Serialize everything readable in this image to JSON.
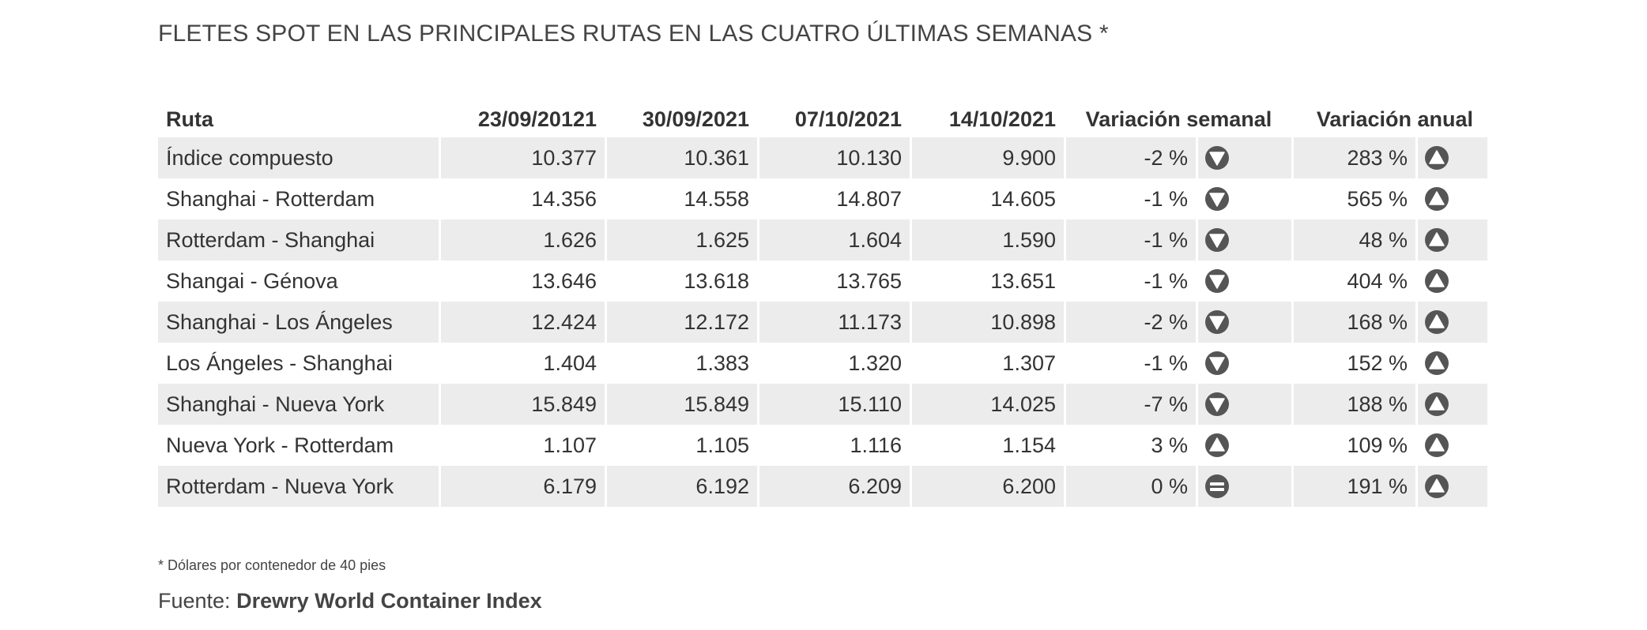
{
  "title": "FLETES SPOT EN LAS PRINCIPALES RUTAS EN LAS CUATRO ÚLTIMAS SEMANAS *",
  "table": {
    "headers": {
      "route": "Ruta",
      "week1": "23/09/20121",
      "week2": "30/09/2021",
      "week3": "07/10/2021",
      "week4": "14/10/2021",
      "weekly_variation": "Variación semanal",
      "annual_variation": "Variación anual"
    },
    "rows": [
      {
        "route": "Índice compuesto",
        "w1": "10.377",
        "w2": "10.361",
        "w3": "10.130",
        "w4": "9.900",
        "weekly": "-2 %",
        "weekly_icon": "down",
        "annual": "283 %",
        "annual_icon": "up"
      },
      {
        "route": "Shanghai - Rotterdam",
        "w1": "14.356",
        "w2": "14.558",
        "w3": "14.807",
        "w4": "14.605",
        "weekly": "-1 %",
        "weekly_icon": "down",
        "annual": "565 %",
        "annual_icon": "up"
      },
      {
        "route": "Rotterdam - Shanghai",
        "w1": "1.626",
        "w2": "1.625",
        "w3": "1.604",
        "w4": "1.590",
        "weekly": "-1 %",
        "weekly_icon": "down",
        "annual": "48 %",
        "annual_icon": "up"
      },
      {
        "route": "Shangai - Génova",
        "w1": "13.646",
        "w2": "13.618",
        "w3": "13.765",
        "w4": "13.651",
        "weekly": "-1 %",
        "weekly_icon": "down",
        "annual": "404 %",
        "annual_icon": "up"
      },
      {
        "route": "Shanghai - Los Ángeles",
        "w1": "12.424",
        "w2": "12.172",
        "w3": "11.173",
        "w4": "10.898",
        "weekly": "-2 %",
        "weekly_icon": "down",
        "annual": "168 %",
        "annual_icon": "up"
      },
      {
        "route": "Los Ángeles - Shanghai",
        "w1": "1.404",
        "w2": "1.383",
        "w3": "1.320",
        "w4": "1.307",
        "weekly": "-1 %",
        "weekly_icon": "down",
        "annual": "152 %",
        "annual_icon": "up"
      },
      {
        "route": "Shanghai - Nueva York",
        "w1": "15.849",
        "w2": "15.849",
        "w3": "15.110",
        "w4": "14.025",
        "weekly": "-7 %",
        "weekly_icon": "down",
        "annual": "188 %",
        "annual_icon": "up"
      },
      {
        "route": "Nueva York - Rotterdam",
        "w1": "1.107",
        "w2": "1.105",
        "w3": "1.116",
        "w4": "1.154",
        "weekly": "3 %",
        "weekly_icon": "up",
        "annual": "109 %",
        "annual_icon": "up"
      },
      {
        "route": "Rotterdam - Nueva York",
        "w1": "6.179",
        "w2": "6.192",
        "w3": "6.209",
        "w4": "6.200",
        "weekly": "0 %",
        "weekly_icon": "equal",
        "annual": "191 %",
        "annual_icon": "up"
      }
    ]
  },
  "footnote": "* Dólares por contenedor de 40 pies",
  "source": {
    "label": "Fuente:",
    "name": "Drewry World Container Index"
  },
  "colors": {
    "icon_fill": "#555555",
    "row_stripe": "#ececec",
    "text": "#333333"
  }
}
